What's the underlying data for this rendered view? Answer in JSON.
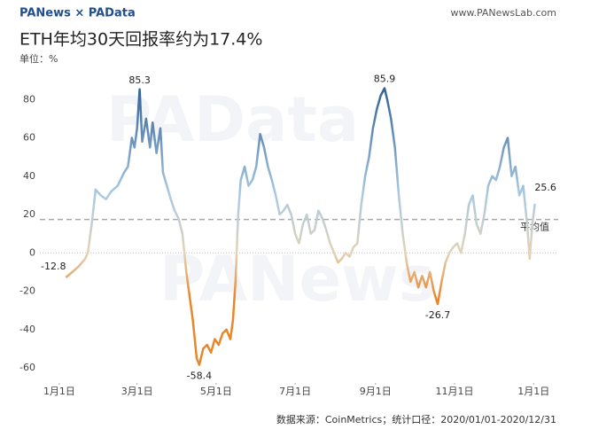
{
  "header": {
    "brand": "PANews × PAData",
    "site": "www.PANewsLab.com"
  },
  "watermarks": [
    "PAData",
    "PANews"
  ],
  "chart_data": {
    "type": "line",
    "title": "ETH年均30天回报率约为17.4%",
    "subtitle": "单位：%",
    "source": "数据来源：CoinMetrics；统计口径：2020/01/01-2020/12/31",
    "x": [
      5,
      10,
      15,
      20,
      22,
      25,
      28,
      32,
      36,
      40,
      45,
      50,
      53,
      56,
      58,
      60,
      62,
      64,
      67,
      70,
      72,
      75,
      78,
      80,
      83,
      86,
      89,
      92,
      95,
      98,
      100,
      103,
      106,
      108,
      111,
      114,
      117,
      120,
      123,
      126,
      129,
      132,
      134,
      136,
      138,
      140,
      143,
      146,
      149,
      152,
      155,
      158,
      161,
      164,
      167,
      170,
      173,
      176,
      179,
      182,
      185,
      188,
      191,
      194,
      197,
      200,
      203,
      206,
      209,
      212,
      215,
      218,
      221,
      224,
      227,
      230,
      233,
      236,
      239,
      242,
      245,
      248,
      251,
      253,
      256,
      259,
      262,
      265,
      268,
      271,
      274,
      277,
      280,
      283,
      286,
      289,
      292,
      295,
      298,
      301,
      304,
      307,
      310,
      313,
      316,
      319,
      322,
      325,
      328,
      331,
      334,
      337,
      340,
      343,
      346,
      349,
      352,
      355,
      358,
      361,
      363,
      365,
      367
    ],
    "values": [
      -12.8,
      -10,
      -7,
      -3,
      0,
      15,
      33,
      30,
      28,
      32,
      35,
      42,
      45,
      60,
      55,
      65,
      85.3,
      58,
      70,
      55,
      68,
      52,
      65,
      42,
      35,
      28,
      22,
      18,
      10,
      -10,
      -20,
      -35,
      -55,
      -58.4,
      -50,
      -48,
      -52,
      -45,
      -48,
      -42,
      -40,
      -45,
      -35,
      -15,
      20,
      38,
      45,
      35,
      38,
      45,
      62,
      55,
      45,
      38,
      30,
      20,
      22,
      25,
      20,
      10,
      5,
      15,
      20,
      10,
      12,
      22,
      18,
      12,
      5,
      0,
      -5,
      -3,
      0,
      -2,
      3,
      5,
      25,
      40,
      50,
      65,
      75,
      82,
      85.9,
      80,
      70,
      55,
      30,
      10,
      -5,
      -15,
      -10,
      -18,
      -12,
      -18,
      -10,
      -20,
      -26.7,
      -15,
      -5,
      0,
      3,
      5,
      0,
      10,
      25,
      30,
      15,
      10,
      20,
      35,
      40,
      38,
      45,
      55,
      60,
      40,
      45,
      30,
      35,
      15,
      -3,
      15,
      25.6
    ],
    "colors": {
      "negative": "#e8862a",
      "zero": "#e3d3b8",
      "positive_low": "#a9c9e2",
      "positive_high": "#2d5e93"
    },
    "xlim": [
      -15,
      385
    ],
    "xticks": [
      {
        "value": 0,
        "label": "1月1日"
      },
      {
        "value": 60,
        "label": "3月1日"
      },
      {
        "value": 121,
        "label": "5月1日"
      },
      {
        "value": 182,
        "label": "7月1日"
      },
      {
        "value": 244,
        "label": "9月1日"
      },
      {
        "value": 305,
        "label": "11月1日"
      },
      {
        "value": 366,
        "label": "1月1日"
      }
    ],
    "ylim": [
      -66,
      88
    ],
    "yticks": [
      -60,
      -40,
      -20,
      0,
      20,
      40,
      60,
      80
    ],
    "average": {
      "value": 17.4,
      "label": "平均值"
    },
    "annotations": [
      {
        "label": "-12.8",
        "x": 5,
        "y": -12.8
      },
      {
        "label": "85.3",
        "x": 62,
        "y": 85.3
      },
      {
        "label": "-58.4",
        "x": 108,
        "y": -58.4
      },
      {
        "label": "85.9",
        "x": 251,
        "y": 85.9
      },
      {
        "label": "-26.7",
        "x": 292,
        "y": -26.7
      },
      {
        "label": "25.6",
        "x": 367,
        "y": 25.6
      }
    ]
  }
}
